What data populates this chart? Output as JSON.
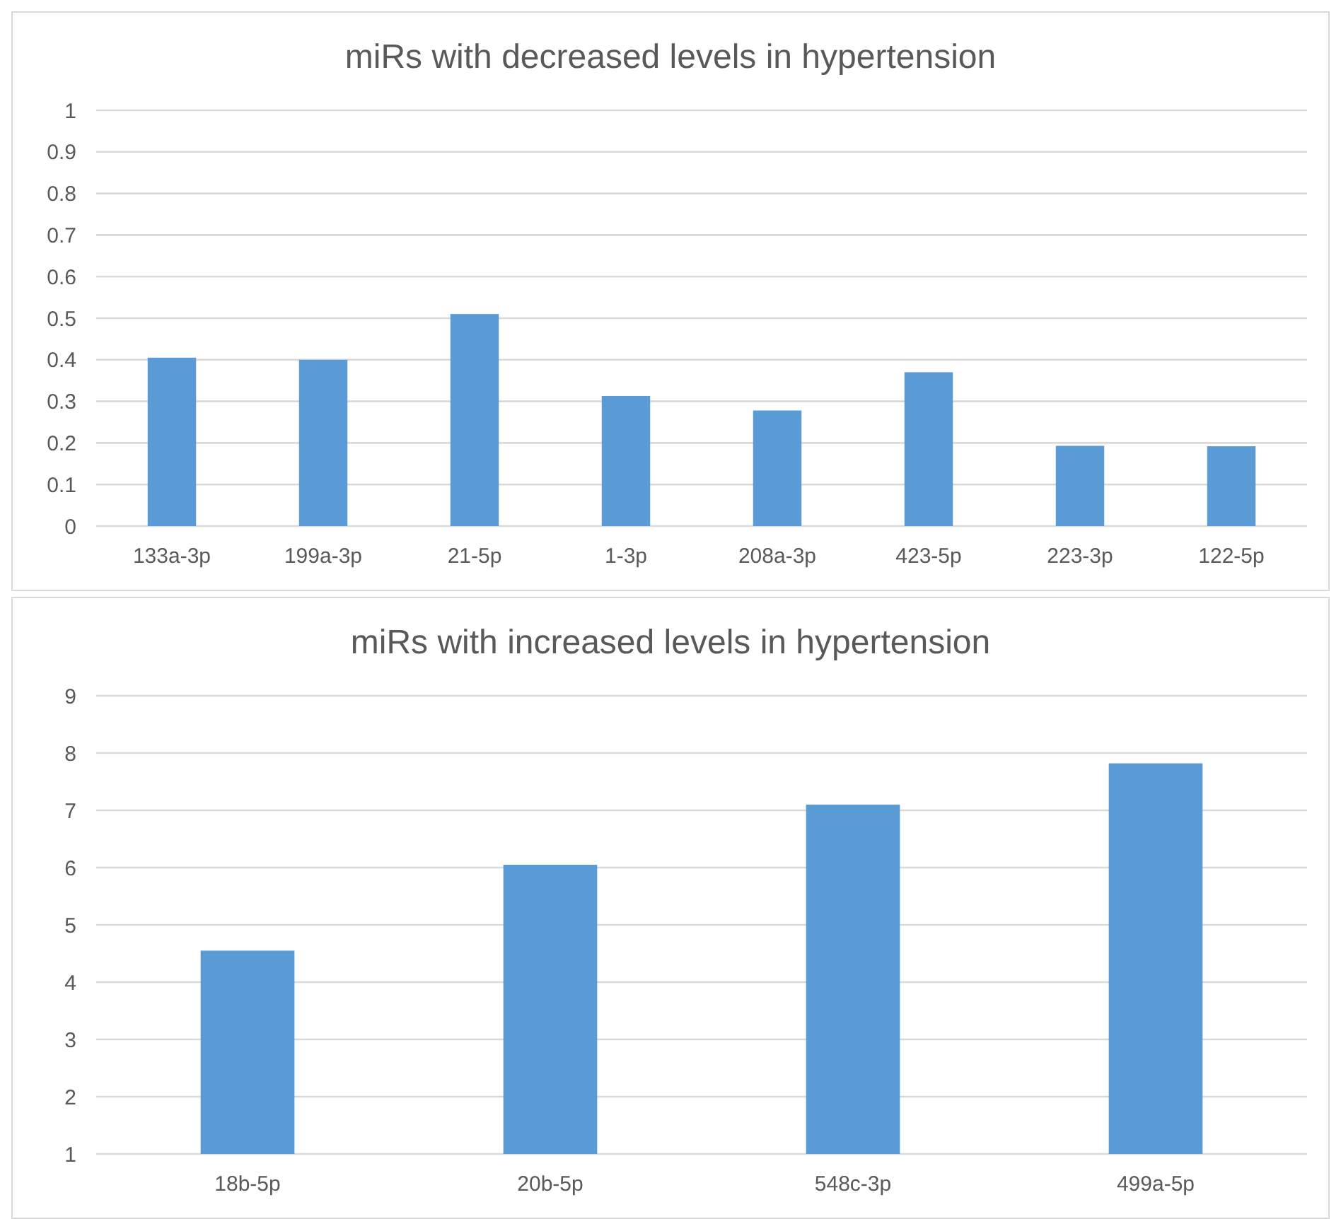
{
  "chart_data": [
    {
      "type": "bar",
      "title": "miRs with decreased levels in hypertension",
      "categories": [
        "133a-3p",
        "199a-3p",
        "21-5p",
        "1-3p",
        "208a-3p",
        "423-5p",
        "223-3p",
        "122-5p"
      ],
      "values": [
        0.405,
        0.4,
        0.51,
        0.313,
        0.278,
        0.37,
        0.193,
        0.192
      ],
      "color": "#5b9bd5",
      "ylim": [
        0,
        1
      ],
      "yticks": [
        0,
        0.1,
        0.2,
        0.3,
        0.4,
        0.5,
        0.6,
        0.7,
        0.8,
        0.9,
        1
      ],
      "grid": "y"
    },
    {
      "type": "bar",
      "title": "miRs with increased levels in hypertension",
      "categories": [
        "18b-5p",
        "20b-5p",
        "548c-3p",
        "499a-5p"
      ],
      "values": [
        4.55,
        6.05,
        7.1,
        7.82
      ],
      "color": "#5b9bd5",
      "ylim": [
        1,
        9
      ],
      "yticks": [
        1,
        2,
        3,
        4,
        5,
        6,
        7,
        8,
        9
      ],
      "grid": "y"
    }
  ]
}
